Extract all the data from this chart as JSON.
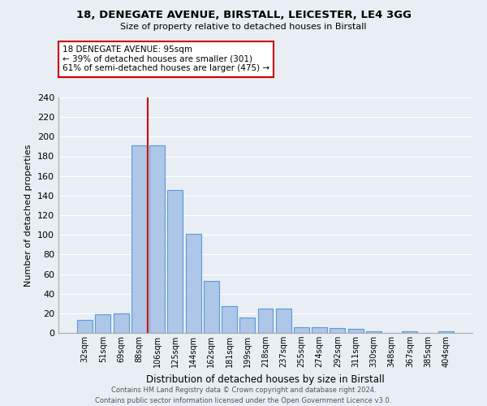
{
  "title1": "18, DENEGATE AVENUE, BIRSTALL, LEICESTER, LE4 3GG",
  "title2": "Size of property relative to detached houses in Birstall",
  "xlabel": "Distribution of detached houses by size in Birstall",
  "ylabel": "Number of detached properties",
  "categories": [
    "32sqm",
    "51sqm",
    "69sqm",
    "88sqm",
    "106sqm",
    "125sqm",
    "144sqm",
    "162sqm",
    "181sqm",
    "199sqm",
    "218sqm",
    "237sqm",
    "255sqm",
    "274sqm",
    "292sqm",
    "311sqm",
    "330sqm",
    "348sqm",
    "367sqm",
    "385sqm",
    "404sqm"
  ],
  "values": [
    13,
    19,
    20,
    191,
    191,
    146,
    101,
    53,
    27,
    16,
    25,
    25,
    6,
    6,
    5,
    4,
    2,
    0,
    2,
    0,
    2
  ],
  "bar_color": "#aec6e8",
  "bar_edge_color": "#5b9bd5",
  "background_color": "#e8eef4",
  "grid_color": "#ffffff",
  "vline_x": 3.5,
  "vline_color": "#cc0000",
  "annotation_title": "18 DENEGATE AVENUE: 95sqm",
  "annotation_line2": "← 39% of detached houses are smaller (301)",
  "annotation_line3": "61% of semi-detached houses are larger (475) →",
  "annotation_box_color": "#ffffff",
  "annotation_border_color": "#cc0000",
  "footer1": "Contains HM Land Registry data © Crown copyright and database right 2024.",
  "footer2": "Contains public sector information licensed under the Open Government Licence v3.0.",
  "ylim": [
    0,
    240
  ],
  "yticks": [
    0,
    20,
    40,
    60,
    80,
    100,
    120,
    140,
    160,
    180,
    200,
    220,
    240
  ]
}
